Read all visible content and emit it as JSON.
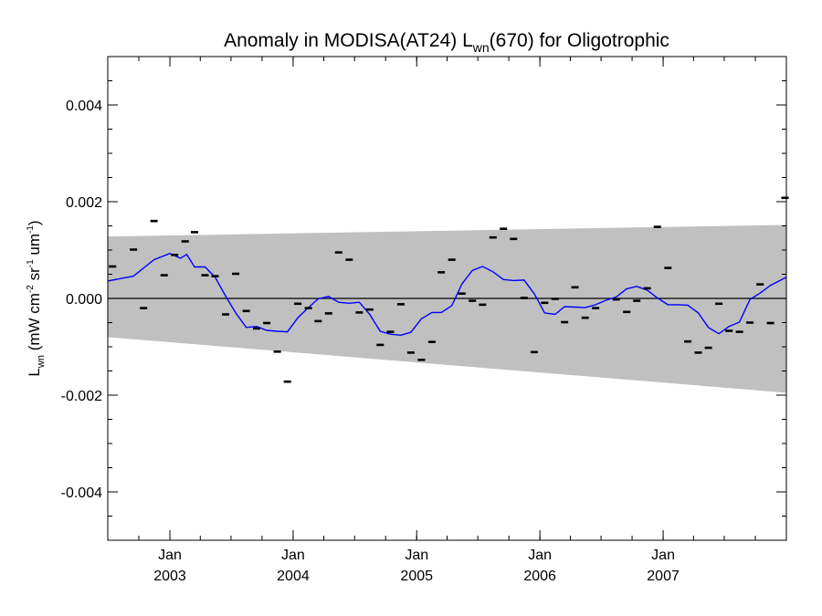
{
  "chart_data": {
    "type": "line",
    "title": {
      "prefix": "Anomaly in MODISA(AT24) L",
      "sub": "wn",
      "suffix": "(670) for Oligotrophic"
    },
    "ylabel": {
      "main": "L",
      "main_sub": "wn",
      "open": " (mW cm",
      "sup1": "-2",
      "mid": " sr",
      "sup2": "-1",
      "mid2": " um",
      "sup3": "-1",
      "close": ")"
    },
    "xlim": [
      "2002-07-01",
      "2008-01-01"
    ],
    "ylim": [
      -0.005,
      0.005
    ],
    "x_ticks": [
      {
        "date": "2003-01-01",
        "month": "Jan",
        "year": "2003"
      },
      {
        "date": "2004-01-01",
        "month": "Jan",
        "year": "2004"
      },
      {
        "date": "2005-01-01",
        "month": "Jan",
        "year": "2005"
      },
      {
        "date": "2006-01-01",
        "month": "Jan",
        "year": "2006"
      },
      {
        "date": "2007-01-01",
        "month": "Jan",
        "year": "2007"
      }
    ],
    "y_ticks": [
      {
        "value": 0.004,
        "label": "0.004"
      },
      {
        "value": 0.002,
        "label": "0.002"
      },
      {
        "value": 0.0,
        "label": "0.000"
      },
      {
        "value": -0.002,
        "label": "-0.002"
      },
      {
        "value": -0.004,
        "label": "-0.004"
      }
    ],
    "zero_line": 0.0,
    "band": {
      "upper_start": 0.00128,
      "upper_end": 0.00152,
      "lower_start": -0.0008,
      "lower_end": -0.00195
    },
    "points": [
      {
        "x": "2002-07-15",
        "y": 0.00066
      },
      {
        "x": "2002-09-15",
        "y": 0.00101
      },
      {
        "x": "2002-10-15",
        "y": -0.0002
      },
      {
        "x": "2002-11-15",
        "y": 0.0016
      },
      {
        "x": "2002-12-15",
        "y": 0.00048
      },
      {
        "x": "2003-01-15",
        "y": 0.0009
      },
      {
        "x": "2003-02-15",
        "y": 0.00118
      },
      {
        "x": "2003-03-15",
        "y": 0.00137
      },
      {
        "x": "2003-04-15",
        "y": 0.00048
      },
      {
        "x": "2003-05-15",
        "y": 0.00046
      },
      {
        "x": "2003-06-15",
        "y": -0.00033
      },
      {
        "x": "2003-07-15",
        "y": 0.00051
      },
      {
        "x": "2003-08-15",
        "y": -0.00026
      },
      {
        "x": "2003-09-15",
        "y": -0.00062
      },
      {
        "x": "2003-10-15",
        "y": -0.00051
      },
      {
        "x": "2003-11-15",
        "y": -0.0011
      },
      {
        "x": "2003-12-15",
        "y": -0.00172
      },
      {
        "x": "2004-01-15",
        "y": -0.00011
      },
      {
        "x": "2004-02-15",
        "y": -0.0002
      },
      {
        "x": "2004-03-15",
        "y": -0.00047
      },
      {
        "x": "2004-04-15",
        "y": -0.00031
      },
      {
        "x": "2004-05-15",
        "y": 0.00095
      },
      {
        "x": "2004-06-15",
        "y": 0.0008
      },
      {
        "x": "2004-07-15",
        "y": -0.00029
      },
      {
        "x": "2004-08-15",
        "y": -0.00023
      },
      {
        "x": "2004-09-15",
        "y": -0.00096
      },
      {
        "x": "2004-10-15",
        "y": -0.00069
      },
      {
        "x": "2004-11-15",
        "y": -0.00012
      },
      {
        "x": "2004-12-15",
        "y": -0.00112
      },
      {
        "x": "2005-01-15",
        "y": -0.00127
      },
      {
        "x": "2005-02-15",
        "y": -0.0009
      },
      {
        "x": "2005-03-15",
        "y": 0.00054
      },
      {
        "x": "2005-04-15",
        "y": 0.0008
      },
      {
        "x": "2005-05-15",
        "y": 0.0001
      },
      {
        "x": "2005-06-15",
        "y": -5e-05
      },
      {
        "x": "2005-07-15",
        "y": -0.00013
      },
      {
        "x": "2005-08-15",
        "y": 0.00126
      },
      {
        "x": "2005-09-15",
        "y": 0.00144
      },
      {
        "x": "2005-10-15",
        "y": 0.00123
      },
      {
        "x": "2005-11-15",
        "y": 1e-05
      },
      {
        "x": "2005-12-15",
        "y": -0.00111
      },
      {
        "x": "2006-01-15",
        "y": -9e-05
      },
      {
        "x": "2006-02-15",
        "y": -1e-05
      },
      {
        "x": "2006-03-15",
        "y": -0.00049
      },
      {
        "x": "2006-04-15",
        "y": 0.00023
      },
      {
        "x": "2006-05-15",
        "y": -0.0004
      },
      {
        "x": "2006-06-15",
        "y": -0.0002
      },
      {
        "x": "2006-08-15",
        "y": -2e-05
      },
      {
        "x": "2006-09-15",
        "y": -0.00028
      },
      {
        "x": "2006-10-15",
        "y": -5e-05
      },
      {
        "x": "2006-11-15",
        "y": 0.00021
      },
      {
        "x": "2006-12-15",
        "y": 0.00148
      },
      {
        "x": "2007-01-15",
        "y": 0.00063
      },
      {
        "x": "2007-03-15",
        "y": -0.00089
      },
      {
        "x": "2007-04-15",
        "y": -0.00112
      },
      {
        "x": "2007-05-15",
        "y": -0.00102
      },
      {
        "x": "2007-06-15",
        "y": -0.00011
      },
      {
        "x": "2007-07-15",
        "y": -0.00067
      },
      {
        "x": "2007-08-15",
        "y": -0.00069
      },
      {
        "x": "2007-09-15",
        "y": -0.0005
      },
      {
        "x": "2007-10-15",
        "y": 0.00029
      },
      {
        "x": "2007-11-15",
        "y": -0.00051
      },
      {
        "x": "2007-12-28",
        "y": 0.00208
      }
    ],
    "series": [
      {
        "color": "#0000ff",
        "points": [
          {
            "x": "2002-07-01",
            "y": 0.00036
          },
          {
            "x": "2002-09-15",
            "y": 0.00046
          },
          {
            "x": "2002-11-15",
            "y": 0.0008
          },
          {
            "x": "2003-01-01",
            "y": 0.00093
          },
          {
            "x": "2003-02-01",
            "y": 0.00083
          },
          {
            "x": "2003-02-20",
            "y": 0.00091
          },
          {
            "x": "2003-03-15",
            "y": 0.00065
          },
          {
            "x": "2003-04-15",
            "y": 0.00065
          },
          {
            "x": "2003-05-15",
            "y": 0.00044
          },
          {
            "x": "2003-06-15",
            "y": 5e-05
          },
          {
            "x": "2003-07-15",
            "y": -0.0003
          },
          {
            "x": "2003-08-15",
            "y": -0.0006
          },
          {
            "x": "2003-09-15",
            "y": -0.00058
          },
          {
            "x": "2003-10-15",
            "y": -0.00066
          },
          {
            "x": "2003-11-15",
            "y": -0.00068
          },
          {
            "x": "2003-12-15",
            "y": -0.00069
          },
          {
            "x": "2004-01-15",
            "y": -0.0004
          },
          {
            "x": "2004-02-15",
            "y": -0.00019
          },
          {
            "x": "2004-03-15",
            "y": -1e-05
          },
          {
            "x": "2004-04-15",
            "y": 4e-05
          },
          {
            "x": "2004-05-15",
            "y": -8e-05
          },
          {
            "x": "2004-06-15",
            "y": -0.0001
          },
          {
            "x": "2004-07-15",
            "y": -8e-05
          },
          {
            "x": "2004-08-15",
            "y": -0.00033
          },
          {
            "x": "2004-09-15",
            "y": -0.00068
          },
          {
            "x": "2004-10-15",
            "y": -0.00074
          },
          {
            "x": "2004-11-15",
            "y": -0.00076
          },
          {
            "x": "2004-12-15",
            "y": -0.0007
          },
          {
            "x": "2005-01-15",
            "y": -0.00042
          },
          {
            "x": "2005-02-15",
            "y": -0.00029
          },
          {
            "x": "2005-03-15",
            "y": -0.00029
          },
          {
            "x": "2005-04-15",
            "y": -0.00015
          },
          {
            "x": "2005-05-15",
            "y": 0.0003
          },
          {
            "x": "2005-06-15",
            "y": 0.00058
          },
          {
            "x": "2005-07-15",
            "y": 0.00066
          },
          {
            "x": "2005-08-15",
            "y": 0.00055
          },
          {
            "x": "2005-09-15",
            "y": 0.00039
          },
          {
            "x": "2005-10-15",
            "y": 0.00037
          },
          {
            "x": "2005-11-15",
            "y": 0.00038
          },
          {
            "x": "2005-12-15",
            "y": 0.0001
          },
          {
            "x": "2006-01-15",
            "y": -0.0003
          },
          {
            "x": "2006-02-15",
            "y": -0.00033
          },
          {
            "x": "2006-03-15",
            "y": -0.00017
          },
          {
            "x": "2006-04-15",
            "y": -0.00018
          },
          {
            "x": "2006-05-15",
            "y": -0.00019
          },
          {
            "x": "2006-06-15",
            "y": -0.00013
          },
          {
            "x": "2006-07-15",
            "y": -4e-05
          },
          {
            "x": "2006-08-15",
            "y": 3e-05
          },
          {
            "x": "2006-09-15",
            "y": 0.0002
          },
          {
            "x": "2006-10-15",
            "y": 0.00025
          },
          {
            "x": "2006-11-15",
            "y": 0.00017
          },
          {
            "x": "2006-12-15",
            "y": 1e-05
          },
          {
            "x": "2007-01-15",
            "y": -0.00013
          },
          {
            "x": "2007-02-15",
            "y": -0.00013
          },
          {
            "x": "2007-03-15",
            "y": -0.00014
          },
          {
            "x": "2007-04-15",
            "y": -0.0003
          },
          {
            "x": "2007-05-15",
            "y": -0.0006
          },
          {
            "x": "2007-06-15",
            "y": -0.00073
          },
          {
            "x": "2007-07-15",
            "y": -0.00058
          },
          {
            "x": "2007-08-15",
            "y": -0.00049
          },
          {
            "x": "2007-09-15",
            "y": -2e-05
          },
          {
            "x": "2007-10-15",
            "y": 0.00011
          },
          {
            "x": "2007-11-15",
            "y": 0.00027
          },
          {
            "x": "2008-01-01",
            "y": 0.00044
          }
        ]
      }
    ],
    "grid": false,
    "legend": "none",
    "colors": {
      "band": "#c0c0c0",
      "line": "#0000ff",
      "points": "#000000",
      "axes": "#000000"
    }
  }
}
